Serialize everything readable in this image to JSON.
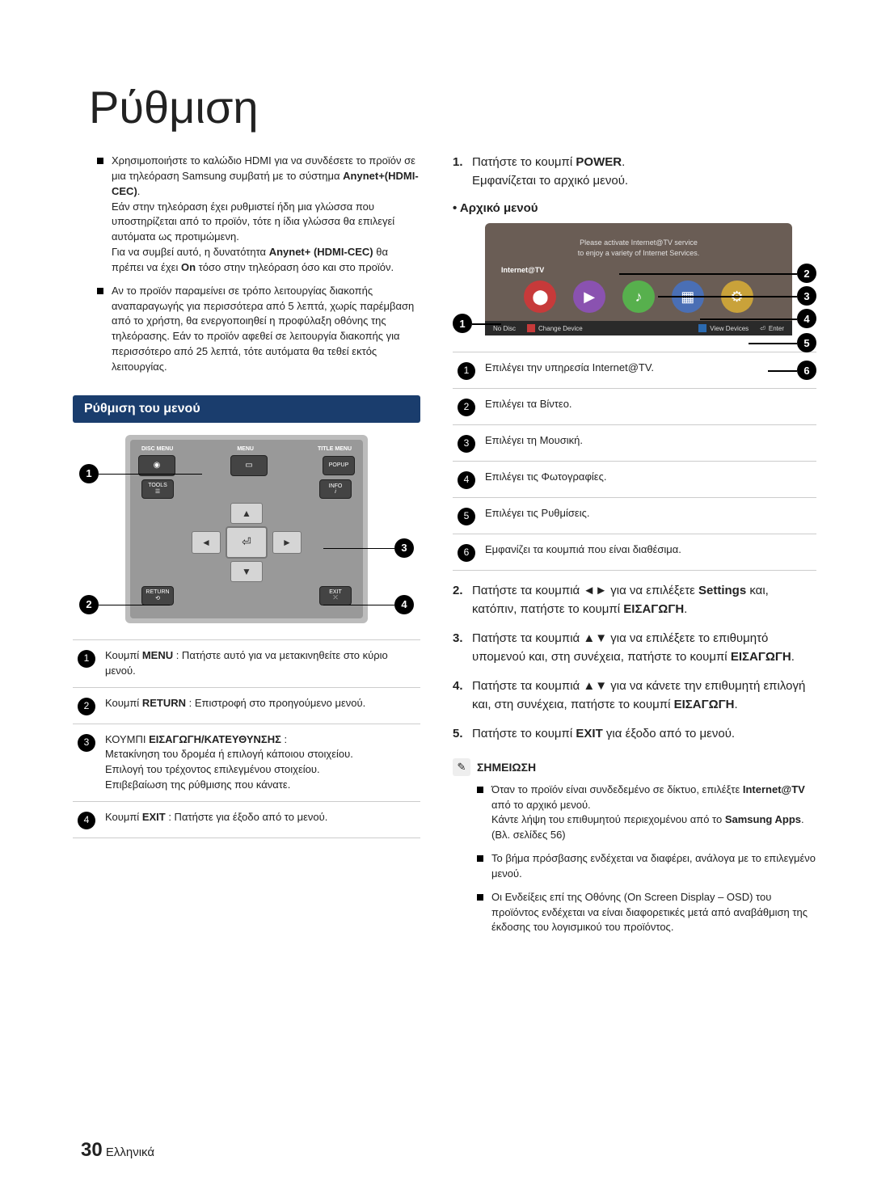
{
  "page": {
    "title": "Ρύθμιση",
    "number": "30",
    "lang_label": "Ελληνικά"
  },
  "left_bullets": [
    "Χρησιμοποιήστε το καλώδιο HDMI για να συνδέσετε το προϊόν σε μια τηλεόραση Samsung συμβατή με το σύστημα <b>Anynet+(HDMI-CEC)</b>.\nΕάν στην τηλεόραση έχει ρυθμιστεί ήδη μια γλώσσα που υποστηρίζεται από το προϊόν, τότε η ίδια γλώσσα θα επιλεγεί αυτόματα ως προτιμώμενη.\nΓια να συμβεί αυτό, η δυνατότητα <b>Anynet+ (HDMI-CEC)</b> θα πρέπει να έχει <b>On</b> τόσο στην τηλεόραση όσο και στο προϊόν.",
    "Αν το προϊόν παραμείνει σε τρόπο λειτουργίας διακοπής αναπαραγωγής για περισσότερα από 5 λεπτά, χωρίς παρέμβαση από το χρήστη, θα ενεργοποιηθεί η προφύλαξη οθόνης της τηλεόρασης. Εάν το προϊόν αφεθεί σε λειτουργία διακοπής για περισσότερο από 25 λεπτά, τότε αυτόματα θα τεθεί εκτός λειτουργίας."
  ],
  "section_bar": "Ρύθμιση του μενού",
  "remote": {
    "top_labels": [
      "DISC MENU",
      "MENU",
      "TITLE MENU"
    ],
    "popup": "POPUP",
    "tools": "TOOLS",
    "info": "INFO",
    "return": "RETURN",
    "exit": "EXIT"
  },
  "remote_table": [
    "Κουμπί <b>MENU</b> : Πατήστε αυτό για να μετακινηθείτε στο κύριο μενού.",
    "Κουμπί <b>RETURN</b> : Επιστροφή στο προηγούμενο μενού.",
    "ΚΟΥΜΠΙ <b>ΕΙΣΑΓΩΓΗ/ΚΑΤΕΥΘΥΝΣΗΣ</b> :\nΜετακίνηση του δρομέα ή επιλογή κάποιου στοιχείου.\nΕπιλογή του τρέχοντος επιλεγμένου στοιχείου.\nΕπιβεβαίωση της ρύθμισης που κάνατε.",
    "Κουμπί <b>EXIT</b> : Πατήστε για έξοδο από το μενού."
  ],
  "right_steps": {
    "s1": "Πατήστε το κουμπί <b>POWER</b>.\nΕμφανίζεται το αρχικό μενού.",
    "home_menu_label": "• Αρχικό μενού",
    "s2": "Πατήστε τα κουμπιά ◄► για να επιλέξετε <b>Settings</b> και, κατόπιν, πατήστε το κουμπί <b>ΕΙΣΑΓΩΓΗ</b>.",
    "s3": "Πατήστε τα κουμπιά ▲▼ για να επιλέξετε το επιθυμητό υπομενού και, στη συνέχεια, πατήστε το κουμπί <b>ΕΙΣΑΓΩΓΗ</b>.",
    "s4": "Πατήστε τα κουμπιά ▲▼ για να κάνετε την επιθυμητή επιλογή και, στη συνέχεια, πατήστε το κουμπί <b>ΕΙΣΑΓΩΓΗ</b>.",
    "s5": "Πατήστε το κουμπί <b>EXIT</b> για έξοδο από το μενού."
  },
  "tv": {
    "banner_line1": "Please activate Internet@TV service",
    "banner_line2": "to enjoy a variety of Internet Services.",
    "row_label": "Internet@TV",
    "icon_colors": [
      "#c73a3a",
      "#8a52b0",
      "#57b04d",
      "#4a6fb5",
      "#c9a23a"
    ],
    "bottom": {
      "nodisc": "No Disc",
      "change": "Change Device",
      "view": "View Devices",
      "enter": "Enter",
      "a_color": "#c73a3a",
      "d_color": "#2b6ab0"
    }
  },
  "tv_table": [
    "Επιλέγει την υπηρεσία Internet@TV.",
    "Επιλέγει τα Βίντεο.",
    "Επιλέγει τη Μουσική.",
    "Επιλέγει τις Φωτογραφίες.",
    "Επιλέγει τις Ρυθμίσεις.",
    "Εμφανίζει τα κουμπιά που είναι διαθέσιμα."
  ],
  "note": {
    "title": "ΣΗΜΕΙΩΣΗ",
    "items": [
      "Όταν το προϊόν είναι συνδεδεμένο σε δίκτυο, επιλέξτε <b>Internet@TV</b> από το αρχικό μενού.\nΚάντε λήψη του επιθυμητού περιεχομένου από το <b>Samsung Apps</b>. (Βλ. σελίδες 56)",
      "Το βήμα πρόσβασης ενδέχεται να διαφέρει, ανάλογα με το επιλεγμένο μενού.",
      "Οι Ενδείξεις επί της Οθόνης (On Screen Display – OSD) του προϊόντος ενδέχεται να είναι διαφορετικές μετά από αναβάθμιση της έκδοσης του λογισμικού του προϊόντος."
    ]
  }
}
